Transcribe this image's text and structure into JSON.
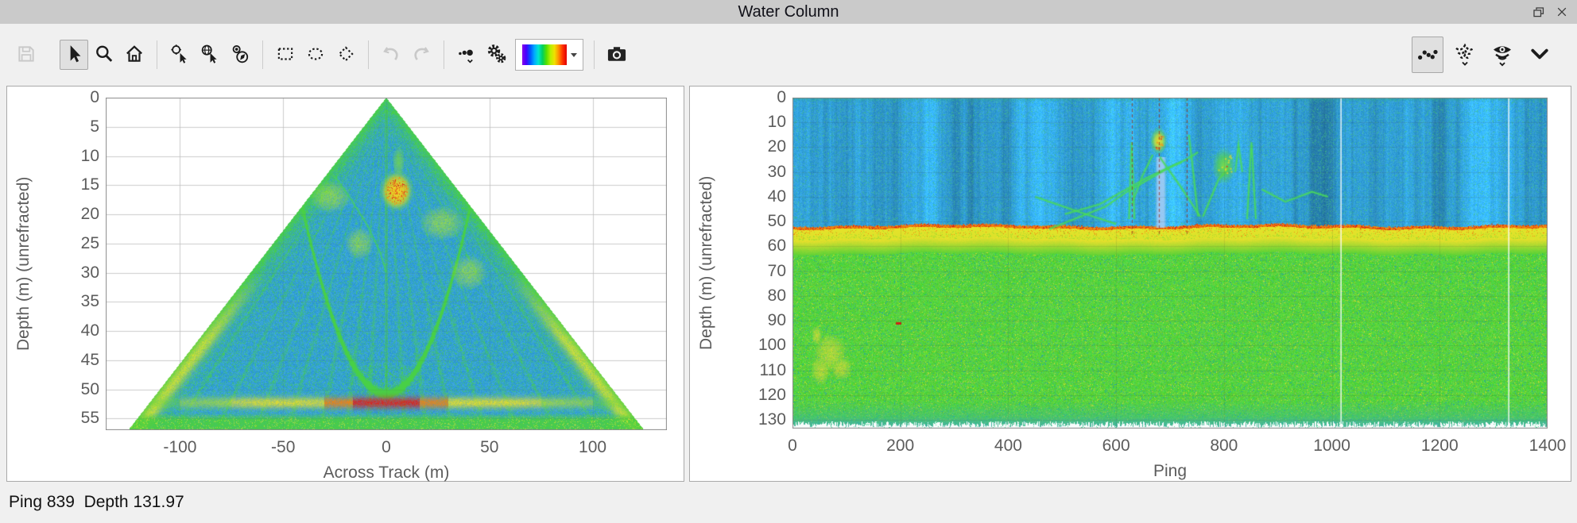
{
  "window": {
    "title": "Water Column"
  },
  "toolbar": {
    "left_icons": [
      "save",
      "pointer-select",
      "zoom",
      "home",
      "point-pick",
      "geographic-pick",
      "compass-pick",
      "rectangle-select",
      "ellipse-select",
      "polygon-select",
      "undo",
      "redo",
      "point-display-options",
      "display-settings",
      "colormap",
      "snapshot"
    ],
    "right_icons": [
      "points-view",
      "swath-view",
      "water-column-view",
      "expand-more"
    ],
    "active_left": "pointer-select",
    "active_right": "points-view",
    "disabled": [
      "save",
      "undo",
      "redo"
    ],
    "colormap_gradient": [
      "#8800e8",
      "#4400ff",
      "#0055ff",
      "#00aaff",
      "#00e5d0",
      "#00d060",
      "#55e000",
      "#b8f000",
      "#f0e000",
      "#ff9000",
      "#ff3000",
      "#e00000"
    ]
  },
  "status_bar": {
    "text": "Ping 839  Depth 131.97"
  },
  "chart_data": [
    {
      "id": "fan",
      "type": "heatmap",
      "title": "",
      "xlabel": "Across Track (m)",
      "ylabel": "Depth (m) (unrefracted)",
      "x_range": [
        -136,
        136
      ],
      "depth_range": [
        0,
        57
      ],
      "xticks": [
        -100,
        -50,
        0,
        50,
        100
      ],
      "yticks": [
        0,
        5,
        10,
        15,
        20,
        25,
        30,
        35,
        40,
        45,
        50,
        55
      ],
      "grid": true,
      "legend": "none",
      "features": {
        "water_color": "#2698d4",
        "sediment_color": "#48d046",
        "beam_halfwidth_per_m": 2.193,
        "ray_ratios": [
          -1.8,
          -1.45,
          -1.12,
          -0.84,
          -0.56,
          -0.34,
          -0.16,
          0.16,
          0.34,
          0.56,
          0.84,
          1.12,
          1.45,
          1.8
        ],
        "parabola": {
          "vertex_depth": 50.8,
          "coeff": 0.0193,
          "min_depth": 9
        },
        "seabed": {
          "depth": 52.3,
          "red_halfwidth_m": 16,
          "orange_halfwidth_m": 30,
          "yellow_halfwidth_m": 75
        },
        "school": {
          "a": 5,
          "d": 16,
          "ra": 8.5,
          "rd": 3.6
        },
        "school_tail": {
          "a": 6,
          "d": 11,
          "ra": 3,
          "rd": 2.6
        },
        "lobes": [
          {
            "a": -27,
            "d": 17,
            "ra": 10,
            "rd": 2.8
          },
          {
            "a": 27,
            "d": 21.5,
            "ra": 11,
            "rd": 3
          },
          {
            "a": -13,
            "d": 25,
            "ra": 7,
            "rd": 2.8
          },
          {
            "a": 40,
            "d": 30,
            "ra": 9,
            "rd": 3
          }
        ],
        "trail": [
          [
            -25,
            13.5
          ],
          [
            -17,
            17.5
          ],
          [
            -9,
            22
          ],
          [
            -3,
            26.5
          ],
          [
            0,
            30
          ]
        ]
      }
    },
    {
      "id": "echogram",
      "type": "heatmap",
      "title": "",
      "xlabel": "Ping",
      "ylabel": "Depth (m) (unrefracted)",
      "x_range": [
        0,
        1400
      ],
      "depth_range": [
        0,
        133.5
      ],
      "xticks": [
        0,
        200,
        400,
        600,
        800,
        1000,
        1200,
        1400
      ],
      "yticks": [
        0,
        10,
        20,
        30,
        40,
        50,
        60,
        70,
        80,
        90,
        100,
        110,
        120,
        130
      ],
      "grid": true,
      "legend": "none",
      "seabed_depth": 52,
      "features": {
        "water_color": "#2494d2",
        "yellow_band_color": "#e1e42a",
        "sediment_color": "#46cd3c",
        "seabed_line_color": "#ee690e",
        "white_lines_ping": [
          1016,
          1327
        ],
        "red_dashed_lines_ping": [
          629,
          680,
          731
        ],
        "blue_band": {
          "ping": [
            672,
            694
          ],
          "depth": [
            24,
            52.5
          ]
        },
        "school_blobs": [
          {
            "ping": 679,
            "depth": 17.5,
            "r_ping": 16,
            "r_m": 5.5,
            "palette": "yellow"
          },
          {
            "ping": 800,
            "depth": 27.5,
            "r_ping": 22,
            "r_m": 7.5,
            "palette": "green"
          }
        ],
        "trails": [
          [
            [
              505,
              47
            ],
            [
              570,
              43
            ],
            [
              660,
              32
            ],
            [
              730,
              25
            ],
            [
              752,
              22
            ]
          ],
          [
            [
              476,
              53
            ],
            [
              580,
              44
            ],
            [
              620,
              38
            ],
            [
              700,
              28
            ],
            [
              722,
              26
            ]
          ],
          [
            [
              624,
              49
            ],
            [
              629,
              18
            ],
            [
              634,
              49
            ]
          ],
          [
            [
              843,
              49
            ],
            [
              851,
              18
            ],
            [
              859,
              49
            ]
          ],
          [
            [
              821,
              30
            ],
            [
              827,
              19
            ],
            [
              834,
              30
            ]
          ],
          [
            [
              735,
              15
            ],
            [
              743,
              30
            ],
            [
              752,
              48
            ]
          ],
          [
            [
              681,
              24
            ],
            [
              720,
              36
            ],
            [
              756,
              48
            ]
          ],
          [
            [
              870,
              37
            ],
            [
              914,
              42
            ],
            [
              963,
              38
            ],
            [
              993,
              40
            ]
          ],
          [
            [
              450,
              40
            ],
            [
              530,
              46
            ],
            [
              600,
              51
            ]
          ],
          [
            [
              629,
              43
            ],
            [
              650,
              31
            ],
            [
              668,
              23
            ]
          ],
          [
            [
              761,
              48
            ],
            [
              790,
              33
            ],
            [
              810,
              28
            ]
          ]
        ],
        "bottom_patch": [
          [
            70,
            103,
            30,
            8
          ],
          [
            52,
            110,
            18,
            6
          ],
          [
            90,
            109,
            20,
            5
          ],
          [
            45,
            96,
            10,
            4
          ]
        ],
        "red_dash": {
          "ping": [
            192,
            202
          ],
          "depth": 91
        }
      }
    }
  ]
}
